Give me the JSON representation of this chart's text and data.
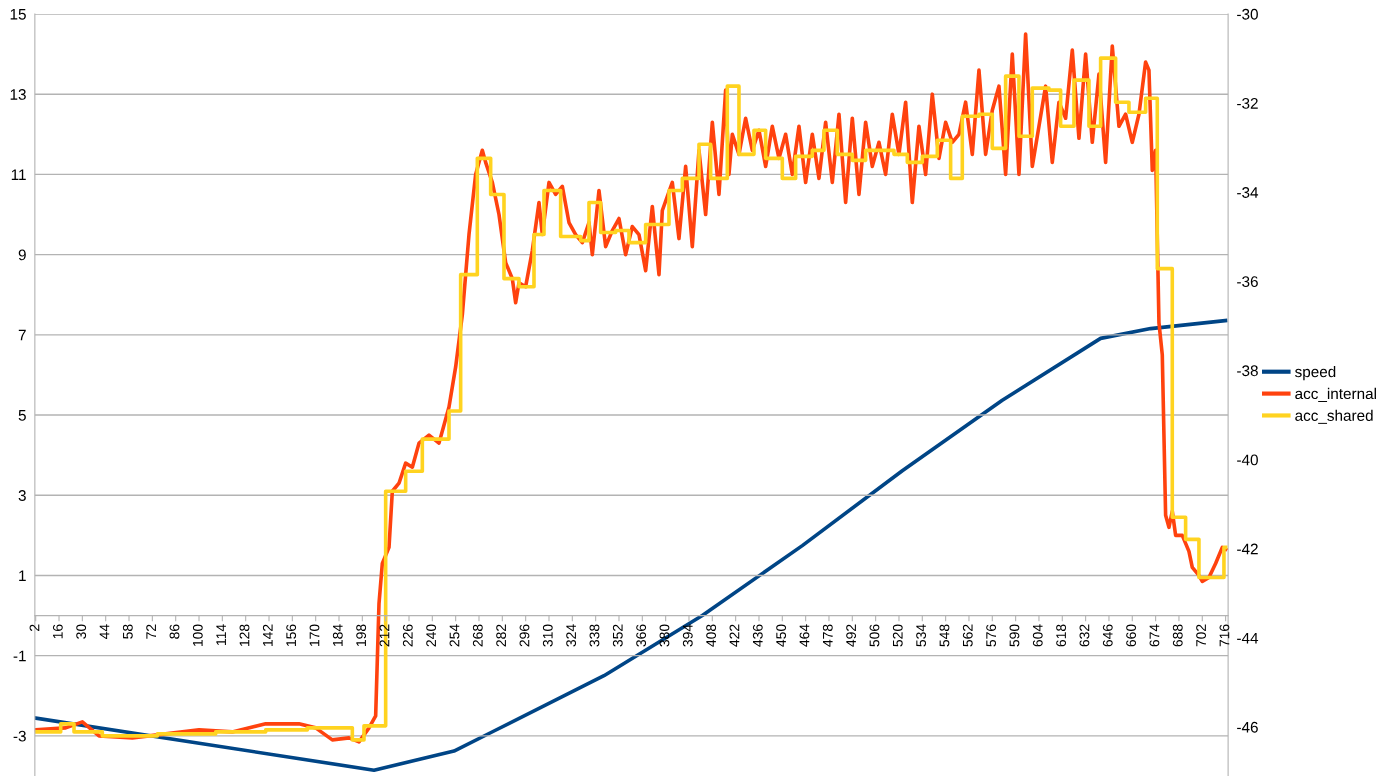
{
  "chart_data": {
    "type": "line",
    "xlim": [
      1.5,
      717.5
    ],
    "xticks": [
      2,
      16,
      30,
      44,
      58,
      72,
      86,
      100,
      114,
      128,
      142,
      156,
      170,
      184,
      198,
      212,
      226,
      240,
      254,
      268,
      282,
      296,
      310,
      324,
      338,
      352,
      366,
      380,
      394,
      408,
      422,
      436,
      450,
      464,
      478,
      492,
      506,
      520,
      534,
      548,
      562,
      576,
      590,
      604,
      618,
      632,
      646,
      660,
      674,
      688,
      702,
      716
    ],
    "ylim": [
      -4,
      15
    ],
    "yticks": [
      -3,
      -1,
      1,
      3,
      5,
      7,
      9,
      11,
      13,
      15
    ],
    "y2lim": [
      -47.1,
      -30
    ],
    "y2ticks": [
      -46,
      -44,
      -42,
      -40,
      -38,
      -36,
      -34,
      -32,
      -30
    ],
    "grid": "y",
    "legend": "right",
    "marker": "none",
    "line_style": "solid",
    "series": [
      {
        "name": "speed",
        "color": "#004586",
        "axis": "y2",
        "x": [
          2,
          205,
          253,
          277,
          343,
          402,
          462,
          522,
          582,
          641,
          671,
          716
        ],
        "values": [
          -45.8,
          -46.97,
          -46.54,
          -46.09,
          -44.85,
          -43.5,
          -41.93,
          -40.25,
          -38.67,
          -37.28,
          -37.06,
          -36.88
        ]
      },
      {
        "name": "acc_internal",
        "color": "#ff420e",
        "x": [
          2,
          20,
          30,
          40,
          60,
          80,
          100,
          120,
          140,
          160,
          170,
          180,
          190,
          196,
          202,
          206,
          208,
          210,
          214,
          216,
          220,
          224,
          228,
          232,
          238,
          244,
          250,
          254,
          258,
          262,
          266,
          270,
          272,
          276,
          280,
          284,
          288,
          290,
          292,
          296,
          300,
          304,
          306,
          310,
          314,
          318,
          322,
          326,
          330,
          334,
          336,
          340,
          344,
          348,
          352,
          356,
          360,
          364,
          368,
          372,
          376,
          378,
          384,
          388,
          392,
          396,
          400,
          404,
          408,
          412,
          416,
          418,
          420,
          424,
          428,
          432,
          436,
          440,
          444,
          448,
          452,
          456,
          460,
          464,
          468,
          472,
          476,
          480,
          484,
          488,
          492,
          496,
          500,
          504,
          508,
          512,
          516,
          520,
          524,
          528,
          532,
          536,
          540,
          544,
          548,
          552,
          556,
          560,
          564,
          568,
          572,
          576,
          580,
          584,
          588,
          592,
          596,
          600,
          604,
          608,
          612,
          616,
          620,
          624,
          628,
          632,
          636,
          640,
          644,
          648,
          652,
          656,
          660,
          664,
          668,
          670,
          672,
          674,
          676,
          678,
          680,
          682,
          684,
          686,
          690,
          694,
          696,
          700,
          702,
          706,
          710,
          714,
          716
        ],
        "values": [
          -2.85,
          -2.8,
          -2.65,
          -3.0,
          -3.05,
          -2.95,
          -2.85,
          -2.9,
          -2.7,
          -2.7,
          -2.8,
          -3.1,
          -3.05,
          -3.15,
          -2.8,
          -2.5,
          0.3,
          1.3,
          1.7,
          3.1,
          3.3,
          3.8,
          3.7,
          4.3,
          4.5,
          4.3,
          5.2,
          6.2,
          7.5,
          9.5,
          11.0,
          11.6,
          11.3,
          10.8,
          10.0,
          8.8,
          8.4,
          7.8,
          8.3,
          8.2,
          9.1,
          10.3,
          9.5,
          10.8,
          10.5,
          10.7,
          9.8,
          9.5,
          9.3,
          9.8,
          9.0,
          10.6,
          9.2,
          9.6,
          9.9,
          9.0,
          9.7,
          9.5,
          8.6,
          10.2,
          8.5,
          10.1,
          10.8,
          9.4,
          11.2,
          9.2,
          11.6,
          10.0,
          12.3,
          10.5,
          13.1,
          11.0,
          12.0,
          11.5,
          12.4,
          11.6,
          12.1,
          11.2,
          12.2,
          11.4,
          12.0,
          11.0,
          12.2,
          10.8,
          12.0,
          10.9,
          12.3,
          10.8,
          12.5,
          10.3,
          12.4,
          10.5,
          12.3,
          11.2,
          11.8,
          11.0,
          12.5,
          11.5,
          12.8,
          10.3,
          12.2,
          11.0,
          13.0,
          11.4,
          12.3,
          11.8,
          12.0,
          12.8,
          11.5,
          13.6,
          11.5,
          12.6,
          13.2,
          11.0,
          14.0,
          11.0,
          14.5,
          11.2,
          12.2,
          13.2,
          11.3,
          12.8,
          12.4,
          14.1,
          11.9,
          14.0,
          11.8,
          13.5,
          11.3,
          14.2,
          12.2,
          12.5,
          11.8,
          12.5,
          13.8,
          13.6,
          11.1,
          11.6,
          7.3,
          6.5,
          2.5,
          2.2,
          2.6,
          2.0,
          2.0,
          1.6,
          1.2,
          1.0,
          0.85,
          0.95,
          1.3,
          1.7,
          1.65
        ]
      },
      {
        "name": "acc_shared",
        "color": "#ffd320",
        "type": "step",
        "x": [
          2,
          17,
          25,
          42,
          75,
          110,
          140,
          165,
          192,
          199,
          212,
          224,
          234,
          250,
          257,
          267,
          275,
          283,
          292,
          301,
          307,
          317,
          329,
          334,
          341,
          350,
          358,
          368,
          382,
          390,
          400,
          407,
          417,
          424,
          433,
          440,
          450,
          458,
          468,
          475,
          483,
          492,
          500,
          517,
          525,
          534,
          543,
          551,
          558,
          568,
          576,
          584,
          592,
          600,
          610,
          617,
          625,
          634,
          641,
          650,
          658,
          668,
          675,
          684,
          692,
          700,
          715,
          716
        ],
        "values": [
          -2.9,
          -2.7,
          -2.9,
          -3.0,
          -2.95,
          -2.9,
          -2.85,
          -2.8,
          -3.1,
          -2.75,
          3.1,
          3.6,
          4.4,
          5.1,
          8.5,
          11.4,
          10.5,
          8.4,
          8.2,
          9.5,
          10.6,
          9.45,
          9.35,
          10.3,
          9.55,
          9.6,
          9.3,
          9.75,
          10.6,
          10.9,
          11.75,
          10.9,
          13.2,
          11.5,
          12.1,
          11.4,
          10.9,
          11.45,
          11.6,
          12.1,
          11.5,
          11.35,
          11.6,
          11.5,
          11.3,
          11.45,
          11.85,
          10.9,
          12.45,
          12.5,
          11.65,
          13.45,
          11.95,
          13.15,
          13.1,
          12.2,
          13.35,
          12.2,
          13.9,
          12.8,
          12.55,
          12.9,
          8.65,
          2.45,
          1.9,
          0.95,
          1.7,
          1.7
        ]
      }
    ]
  }
}
